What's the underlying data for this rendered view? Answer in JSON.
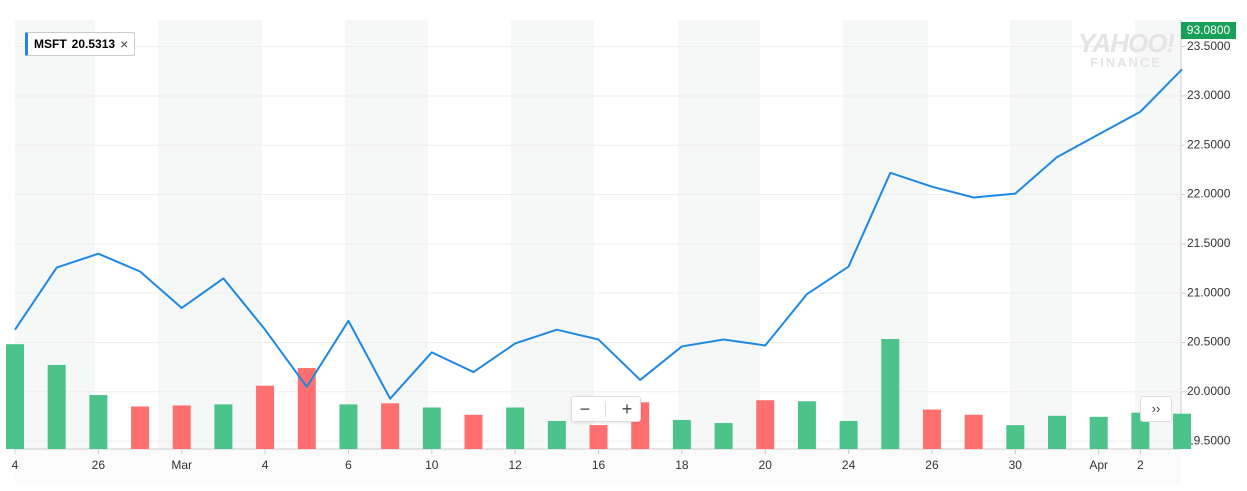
{
  "legend": {
    "value": "20.5313"
  },
  "price_badge": "93.0800",
  "watermark": [
    "YAHOO!",
    "FINANCE"
  ],
  "chart_data": {
    "type": "line",
    "categories": [
      "4",
      null,
      "26",
      null,
      "Mar",
      null,
      "4",
      null,
      "6",
      null,
      "10",
      null,
      "12",
      null,
      "16",
      null,
      "18",
      null,
      "20",
      null,
      "24",
      null,
      "26",
      null,
      "30",
      null,
      "Apr",
      "2",
      null
    ],
    "series": [
      {
        "name": "MSFT",
        "color": "#1e88e5",
        "values": [
          20.63,
          21.26,
          21.4,
          21.22,
          20.85,
          21.15,
          20.63,
          20.05,
          20.72,
          19.93,
          20.4,
          20.2,
          20.49,
          20.63,
          20.53,
          20.12,
          20.46,
          20.53,
          20.47,
          20.99,
          21.27,
          22.22,
          22.08,
          21.97,
          22.01,
          22.38,
          22.61,
          22.84,
          23.27
        ]
      }
    ],
    "volume": {
      "values": [
        101,
        81,
        52,
        41,
        42,
        43,
        61,
        78,
        43,
        44,
        40,
        33,
        40,
        27,
        23,
        45,
        28,
        25,
        47,
        46,
        27,
        106,
        38,
        33,
        23,
        32,
        31,
        35,
        34
      ],
      "colors": [
        "#4cc38a",
        "#4cc38a",
        "#4cc38a",
        "#ff6f6f",
        "#ff6f6f",
        "#4cc38a",
        "#ff6f6f",
        "#ff6f6f",
        "#4cc38a",
        "#ff6f6f",
        "#4cc38a",
        "#ff6f6f",
        "#4cc38a",
        "#4cc38a",
        "#ff6f6f",
        "#ff6f6f",
        "#4cc38a",
        "#4cc38a",
        "#ff6f6f",
        "#4cc38a",
        "#4cc38a",
        "#4cc38a",
        "#ff6f6f",
        "#ff6f6f",
        "#4cc38a",
        "#4cc38a",
        "#4cc38a",
        "#4cc38a",
        "#4cc38a"
      ]
    },
    "ylim": [
      19.42,
      23.77
    ],
    "yticks": [
      {
        "value": 19.5,
        "label": "19.5000"
      },
      {
        "value": 20,
        "label": "20.0000"
      },
      {
        "value": 20.5,
        "label": "20.5000"
      },
      {
        "value": 21,
        "label": "21.0000"
      },
      {
        "value": 21.5,
        "label": "21.5000"
      },
      {
        "value": 22,
        "label": "22.0000"
      },
      {
        "value": 22.5,
        "label": "22.5000"
      },
      {
        "value": 23,
        "label": "23.0000"
      },
      {
        "value": 23.5,
        "label": "23.5000"
      }
    ],
    "grid": true
  }
}
